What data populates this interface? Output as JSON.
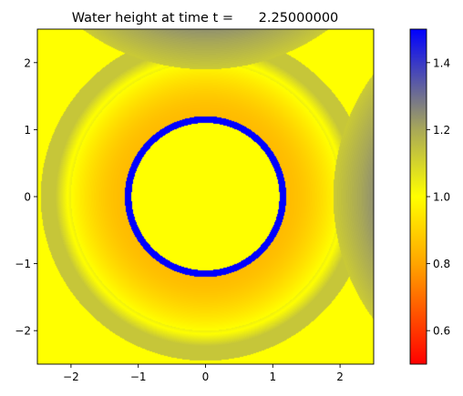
{
  "chart_data": {
    "type": "heatmap",
    "title": "Water height at time t =      2.25000000",
    "xlabel": "",
    "ylabel": "",
    "xlim": [
      -2.5,
      2.5
    ],
    "ylim": [
      -2.5,
      2.5
    ],
    "x_ticks": [
      -2,
      -1,
      0,
      1,
      2
    ],
    "y_ticks": [
      -2,
      -1,
      0,
      1,
      2
    ],
    "x_tick_labels": [
      "−2",
      "−1",
      "0",
      "1",
      "2"
    ],
    "y_tick_labels": [
      "−2",
      "−1",
      "0",
      "1",
      "2"
    ],
    "grid": false,
    "field": {
      "description_of_regions": "concentric wave pattern",
      "central_disk": {
        "radius": 1.1,
        "value": 1.0
      },
      "inner_ring": {
        "r_from": 1.1,
        "r_to": 2.0,
        "min_value": 0.85,
        "min_at_radius": 1.2
      },
      "outer_ring": {
        "r_from": 2.0,
        "r_to": 2.45,
        "value": 1.13
      },
      "crest_ring": {
        "radius": 2.05,
        "value": 1.0
      },
      "reflected_wave_top": {
        "center": [
          0,
          5.0
        ],
        "radius": 3.1,
        "edge_value": 1.12,
        "far_value": 1.32
      },
      "reflected_wave_right": {
        "center": [
          5.0,
          0
        ],
        "radius": 3.1,
        "edge_value": 1.12,
        "far_value": 1.32
      }
    },
    "colorbar": {
      "vmin": 0.5,
      "vmax": 1.5,
      "ticks": [
        0.6,
        0.8,
        1.0,
        1.2,
        1.4
      ],
      "tick_labels": [
        "0.6",
        "0.8",
        "1.0",
        "1.2",
        "1.4"
      ],
      "colormap_stops": [
        {
          "value": 0.5,
          "color": "#ff0000"
        },
        {
          "value": 0.8,
          "color": "#ffa500"
        },
        {
          "value": 1.0,
          "color": "#ffff00"
        },
        {
          "value": 1.2,
          "color": "#a8a858"
        },
        {
          "value": 1.5,
          "color": "#0000ff"
        }
      ]
    }
  }
}
